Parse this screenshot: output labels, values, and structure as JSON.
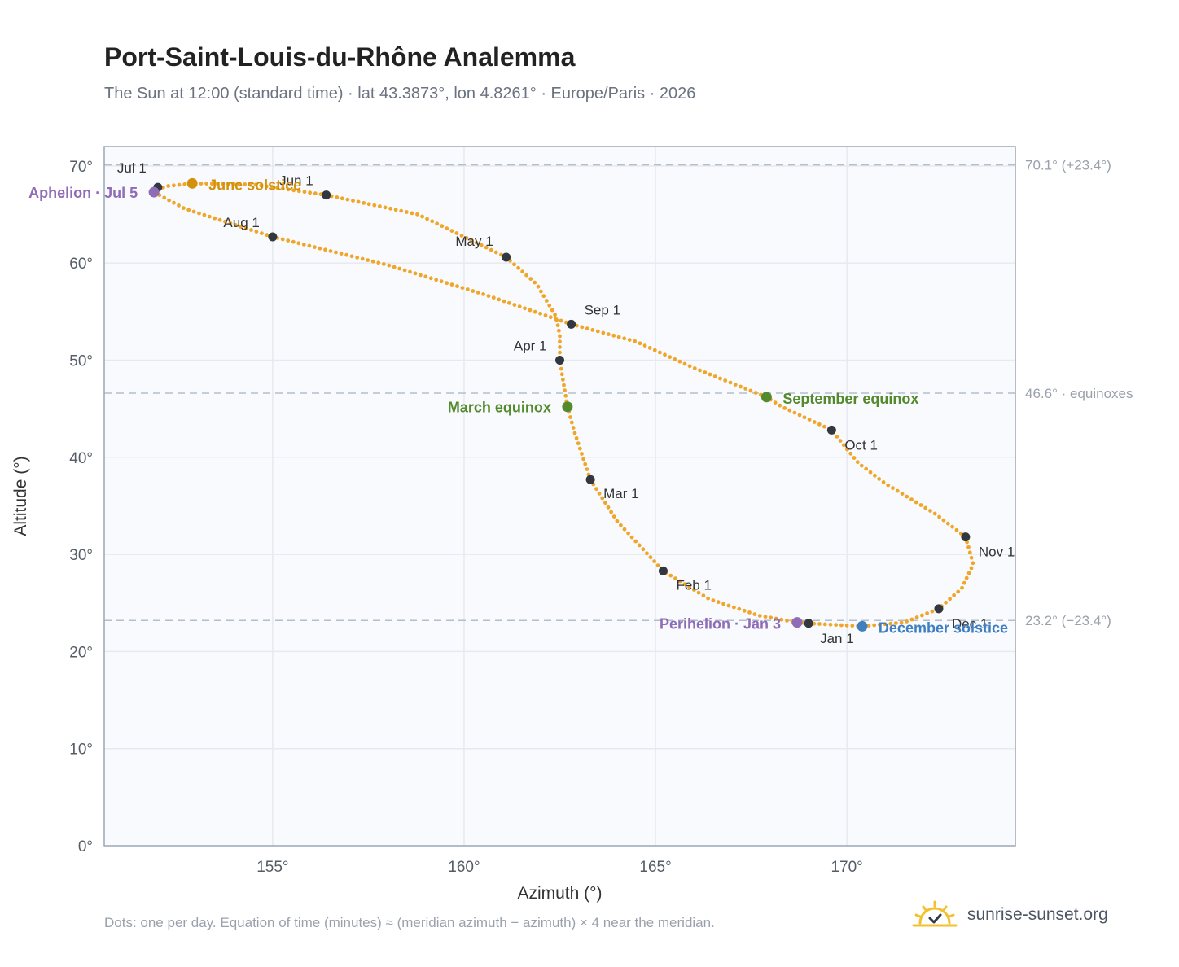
{
  "title": "Port-Saint-Louis-du-Rhône Analemma",
  "subtitle": "The Sun at 12:00 (standard time) · lat 43.3873°, lon 4.8261° · Europe/Paris · 2026",
  "footnote": "Dots: one per day. Equation of time (minutes) ≈ (meridian azimuth − azimuth) × 4 near the meridian.",
  "brand": {
    "name": "sunrise-sunset.org",
    "icon": "sun-logo-icon"
  },
  "colors": {
    "path": "#f0a62a",
    "month_dot": "#333840",
    "june": "#d4920c",
    "equinox": "#528a2c",
    "december": "#3f7fc1",
    "apsis": "#8e6cb6",
    "grid": "#e6eaf0",
    "plot_bg": "#f8fafd",
    "frame": "#9aa7b8",
    "ref_line": "#b2bfcc"
  },
  "chart_data": {
    "type": "scatter",
    "xlabel": "Azimuth (°)",
    "ylabel": "Altitude (°)",
    "xlim": [
      150.6,
      174.4
    ],
    "ylim": [
      0,
      72
    ],
    "xticks": [
      155,
      160,
      165,
      170
    ],
    "xtick_labels": [
      "155°",
      "160°",
      "165°",
      "170°"
    ],
    "yticks": [
      0,
      10,
      20,
      30,
      40,
      50,
      60,
      70
    ],
    "ytick_labels": [
      "0°",
      "10°",
      "20°",
      "30°",
      "40°",
      "50°",
      "60°",
      "70°"
    ],
    "grid": true,
    "reference_lines": [
      {
        "y": 70.1,
        "label": "70.1° (+23.4°)"
      },
      {
        "y": 46.6,
        "label": "46.6° · equinoxes"
      },
      {
        "y": 23.2,
        "label": "23.2° (−23.4°)"
      }
    ],
    "series": [
      {
        "type": "line",
        "points": [
          [
            169.0,
            22.9
          ],
          [
            170.4,
            22.6
          ],
          [
            171.5,
            23.0
          ],
          [
            172.4,
            24.4
          ],
          [
            173.0,
            26.5
          ],
          [
            173.3,
            29.0
          ],
          [
            173.1,
            31.8
          ],
          [
            172.3,
            34.2
          ],
          [
            171.0,
            37.3
          ],
          [
            170.3,
            39.4
          ],
          [
            169.6,
            42.8
          ],
          [
            168.3,
            45.2
          ],
          [
            167.9,
            46.2
          ],
          [
            166.0,
            49.2
          ],
          [
            164.5,
            51.9
          ],
          [
            162.8,
            53.7
          ],
          [
            160.5,
            56.8
          ],
          [
            158.0,
            59.8
          ],
          [
            155.0,
            62.7
          ],
          [
            152.7,
            65.6
          ],
          [
            151.9,
            67.3
          ],
          [
            152.2,
            67.9
          ],
          [
            152.9,
            68.2
          ],
          [
            154.5,
            68.1
          ],
          [
            156.4,
            67.0
          ],
          [
            158.8,
            65.0
          ],
          [
            161.1,
            60.6
          ],
          [
            161.9,
            57.8
          ],
          [
            162.4,
            54.5
          ],
          [
            162.5,
            52.6
          ],
          [
            162.5,
            50.0
          ],
          [
            162.7,
            45.2
          ],
          [
            162.9,
            42.4
          ],
          [
            163.3,
            37.7
          ],
          [
            164.0,
            33.4
          ],
          [
            165.2,
            28.3
          ],
          [
            166.4,
            25.4
          ],
          [
            167.7,
            23.7
          ],
          [
            168.7,
            23.0
          ],
          [
            169.0,
            22.9
          ]
        ]
      }
    ],
    "months": [
      {
        "label": "Jan 1",
        "x": 169.0,
        "y": 22.9
      },
      {
        "label": "Feb 1",
        "x": 165.2,
        "y": 28.3
      },
      {
        "label": "Mar 1",
        "x": 163.3,
        "y": 37.7
      },
      {
        "label": "Apr 1",
        "x": 162.5,
        "y": 50.0
      },
      {
        "label": "May 1",
        "x": 161.1,
        "y": 60.6
      },
      {
        "label": "Jun 1",
        "x": 156.4,
        "y": 67.0
      },
      {
        "label": "Jul 1",
        "x": 152.0,
        "y": 67.8
      },
      {
        "label": "Aug 1",
        "x": 155.0,
        "y": 62.7
      },
      {
        "label": "Sep 1",
        "x": 162.8,
        "y": 53.7
      },
      {
        "label": "Oct 1",
        "x": 169.6,
        "y": 42.8
      },
      {
        "label": "Nov 1",
        "x": 173.1,
        "y": 31.8
      },
      {
        "label": "Dec 1",
        "x": 172.4,
        "y": 24.4
      }
    ],
    "events": [
      {
        "label": "June solstice",
        "x": 152.9,
        "y": 68.2,
        "color": "#d4920c"
      },
      {
        "label": "March equinox",
        "x": 162.7,
        "y": 45.2,
        "color": "#528a2c"
      },
      {
        "label": "September equinox",
        "x": 167.9,
        "y": 46.2,
        "color": "#528a2c"
      },
      {
        "label": "December solstice",
        "x": 170.4,
        "y": 22.6,
        "color": "#3f7fc1"
      },
      {
        "label": "Aphelion · Jul 5",
        "x": 151.9,
        "y": 67.3,
        "color": "#8e6cb6"
      },
      {
        "label": "Perihelion · Jan 3",
        "x": 168.7,
        "y": 23.0,
        "color": "#8e6cb6"
      }
    ]
  }
}
